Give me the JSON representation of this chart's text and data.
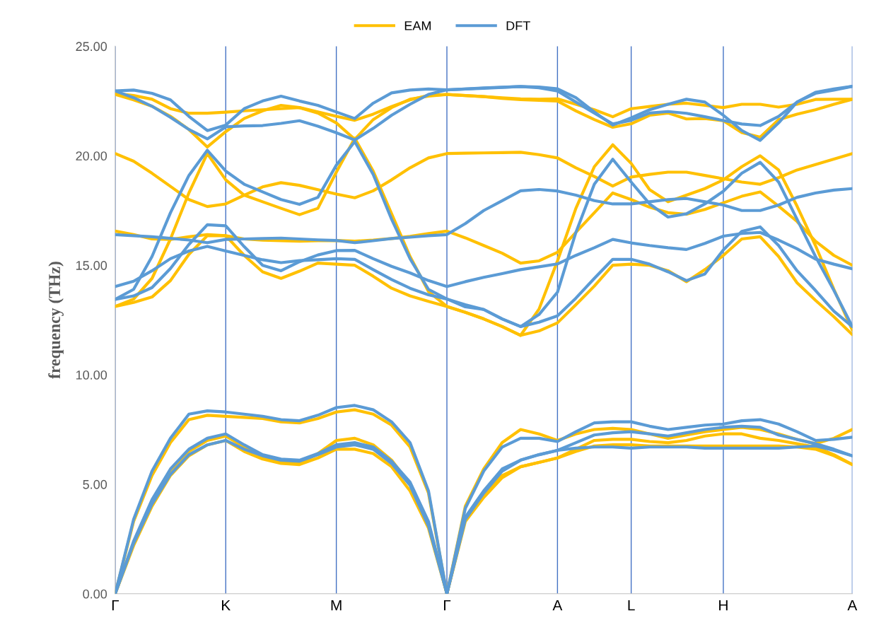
{
  "chart_data": {
    "type": "line",
    "ylabel": "frequency (THz)",
    "legend": "top",
    "marker": "none",
    "line_style": "solid",
    "grid": "x",
    "categories": [
      "Γ",
      null,
      null,
      null,
      null,
      null,
      "K",
      null,
      null,
      null,
      null,
      null,
      "M",
      null,
      null,
      null,
      null,
      null,
      "Γ",
      null,
      null,
      null,
      null,
      null,
      "A",
      null,
      null,
      null,
      "L",
      null,
      null,
      null,
      null,
      "H",
      null,
      null,
      null,
      null,
      null,
      null,
      "A"
    ],
    "ylim": [
      0,
      25
    ],
    "yticks": [
      {
        "value": 0,
        "label": "0.00"
      },
      {
        "value": 5,
        "label": "5.00"
      },
      {
        "value": 10,
        "label": "10.00"
      },
      {
        "value": 15,
        "label": "15.00"
      },
      {
        "value": 20,
        "label": "20.00"
      },
      {
        "value": 25,
        "label": "25.00"
      }
    ],
    "series": [
      {
        "name": "EAM",
        "color": "#ffc000",
        "values": [
          0,
          3.3,
          5.4,
          6.9,
          7.95,
          8.15,
          8.1,
          8.05,
          8.0,
          7.85,
          7.8,
          8.0,
          8.3,
          8.4,
          8.2,
          7.7,
          6.7,
          4.6,
          0,
          4.0,
          5.7,
          6.9,
          7.5,
          7.3,
          7.0,
          7.3,
          7.5,
          7.55,
          7.5,
          7.3,
          7.1,
          7.25,
          7.4,
          7.5,
          7.6,
          7.5,
          7.3,
          7.05,
          6.85,
          7.1,
          7.5
        ]
      },
      {
        "color": "#ffc000",
        "values": [
          0,
          2.3,
          4.2,
          5.6,
          6.5,
          7.0,
          7.2,
          6.7,
          6.25,
          6.0,
          5.95,
          6.4,
          7.0,
          7.1,
          6.8,
          6.1,
          5.0,
          3.2,
          0,
          3.4,
          4.5,
          5.4,
          5.8,
          6.0,
          6.2,
          6.6,
          7.0,
          7.05,
          7.05,
          6.95,
          6.9,
          7.0,
          7.2,
          7.3,
          7.3,
          7.1,
          7.0,
          6.85,
          6.7,
          6.35,
          5.9
        ]
      },
      {
        "color": "#ffc000",
        "values": [
          0,
          2.2,
          4.0,
          5.4,
          6.3,
          6.8,
          7.0,
          6.5,
          6.15,
          5.95,
          5.9,
          6.2,
          6.6,
          6.6,
          6.4,
          5.8,
          4.7,
          3.0,
          0,
          3.3,
          4.4,
          5.3,
          5.8,
          6.0,
          6.2,
          6.5,
          6.75,
          6.8,
          6.8,
          6.75,
          6.75,
          6.75,
          6.75,
          6.75,
          6.75,
          6.75,
          6.75,
          6.7,
          6.6,
          6.3,
          5.9
        ]
      },
      {
        "color": "#ffc000",
        "values": [
          22.85,
          22.75,
          22.58,
          22.15,
          21.94,
          21.94,
          21.99,
          22.05,
          22.1,
          22.15,
          22.2,
          22.0,
          21.8,
          21.62,
          21.9,
          22.25,
          22.55,
          22.76,
          22.8,
          22.75,
          22.7,
          22.65,
          22.6,
          22.58,
          22.6,
          22.35,
          22.1,
          21.78,
          22.15,
          22.25,
          22.35,
          22.4,
          22.3,
          22.2,
          22.35,
          22.35,
          22.22,
          22.35,
          22.57,
          22.58,
          22.58
        ]
      },
      {
        "color": "#ffc000",
        "values": [
          22.8,
          22.55,
          22.26,
          21.8,
          21.2,
          20.4,
          21.1,
          21.7,
          22.05,
          22.3,
          22.2,
          21.95,
          21.5,
          20.75,
          21.65,
          22.2,
          22.58,
          22.72,
          22.8,
          22.75,
          22.7,
          22.62,
          22.56,
          22.53,
          22.5,
          22.05,
          21.65,
          21.3,
          21.46,
          21.85,
          21.95,
          21.68,
          21.7,
          21.6,
          21.06,
          20.85,
          21.65,
          21.9,
          22.1,
          22.35,
          22.58
        ]
      },
      {
        "color": "#ffc000",
        "values": [
          20.1,
          19.75,
          19.2,
          18.6,
          18.0,
          17.68,
          17.8,
          18.2,
          18.58,
          18.77,
          18.65,
          18.45,
          18.25,
          18.08,
          18.4,
          18.9,
          19.45,
          19.9,
          20.1,
          20.12,
          20.13,
          20.14,
          20.16,
          20.05,
          19.9,
          19.45,
          19.05,
          18.62,
          19.03,
          19.15,
          19.25,
          19.25,
          19.1,
          18.95,
          18.8,
          18.7,
          19.0,
          19.35,
          19.6,
          19.85,
          20.1
        ]
      },
      {
        "color": "#ffc000",
        "values": [
          13.12,
          13.45,
          14.4,
          16.2,
          18.3,
          20.1,
          18.9,
          18.2,
          17.9,
          17.6,
          17.31,
          17.6,
          19.25,
          20.8,
          19.3,
          17.35,
          15.4,
          13.8,
          13.12,
          12.85,
          12.55,
          12.2,
          11.8,
          13.0,
          15.2,
          17.6,
          19.5,
          20.5,
          19.65,
          18.45,
          17.9,
          18.2,
          18.5,
          18.9,
          19.5,
          20.0,
          19.35,
          17.7,
          15.9,
          13.9,
          12.04
        ]
      },
      {
        "color": "#ffc000",
        "values": [
          13.12,
          13.3,
          13.55,
          14.3,
          15.5,
          16.35,
          16.35,
          15.45,
          14.7,
          14.4,
          14.73,
          15.1,
          15.05,
          15.0,
          14.5,
          13.95,
          13.6,
          13.35,
          13.12,
          12.85,
          12.55,
          12.2,
          11.8,
          12.0,
          12.37,
          13.2,
          14.05,
          15.0,
          15.05,
          15.0,
          14.75,
          14.25,
          14.8,
          15.45,
          16.2,
          16.3,
          15.4,
          14.2,
          13.4,
          12.65,
          11.83
        ]
      },
      {
        "color": "#ffc000",
        "values": [
          16.56,
          16.4,
          16.2,
          16.18,
          16.3,
          16.4,
          16.35,
          16.2,
          16.15,
          16.12,
          16.1,
          16.12,
          16.13,
          16.1,
          16.15,
          16.22,
          16.32,
          16.45,
          16.56,
          16.25,
          15.9,
          15.55,
          15.1,
          15.2,
          15.59,
          16.5,
          17.4,
          18.3,
          18.0,
          17.65,
          17.4,
          17.33,
          17.55,
          17.85,
          18.15,
          18.35,
          17.7,
          17.0,
          16.1,
          15.45,
          15.0
        ]
      },
      {
        "name": "DFT",
        "color": "#5b9bd5",
        "values": [
          0,
          3.4,
          5.6,
          7.1,
          8.2,
          8.35,
          8.3,
          8.2,
          8.1,
          7.95,
          7.9,
          8.15,
          8.5,
          8.6,
          8.4,
          7.85,
          6.9,
          4.7,
          0,
          3.9,
          5.6,
          6.7,
          7.1,
          7.1,
          6.95,
          7.4,
          7.8,
          7.85,
          7.85,
          7.65,
          7.5,
          7.6,
          7.7,
          7.75,
          7.9,
          7.95,
          7.75,
          7.4,
          7.0,
          7.05,
          7.15
        ]
      },
      {
        "color": "#5b9bd5",
        "values": [
          0,
          2.4,
          4.3,
          5.7,
          6.6,
          7.1,
          7.3,
          6.8,
          6.35,
          6.15,
          6.1,
          6.4,
          6.8,
          6.9,
          6.7,
          6.05,
          5.1,
          3.3,
          0,
          3.5,
          4.7,
          5.7,
          6.1,
          6.35,
          6.55,
          6.9,
          7.25,
          7.35,
          7.4,
          7.3,
          7.2,
          7.35,
          7.5,
          7.6,
          7.65,
          7.6,
          7.25,
          7.05,
          6.85,
          6.6,
          6.3
        ]
      },
      {
        "color": "#5b9bd5",
        "values": [
          0,
          2.3,
          4.1,
          5.45,
          6.35,
          6.8,
          7.0,
          6.6,
          6.3,
          6.1,
          6.05,
          6.35,
          6.7,
          6.8,
          6.6,
          5.95,
          4.95,
          3.1,
          0,
          3.4,
          4.6,
          5.6,
          6.1,
          6.35,
          6.55,
          6.65,
          6.7,
          6.7,
          6.65,
          6.7,
          6.7,
          6.7,
          6.65,
          6.65,
          6.65,
          6.65,
          6.65,
          6.7,
          6.75,
          6.55,
          6.3
        ]
      },
      {
        "color": "#5b9bd5",
        "values": [
          22.96,
          23.0,
          22.85,
          22.55,
          21.8,
          21.15,
          21.4,
          22.15,
          22.5,
          22.72,
          22.5,
          22.3,
          22.0,
          21.7,
          22.4,
          22.87,
          23.0,
          23.05,
          23.01,
          23.05,
          23.1,
          23.13,
          23.16,
          23.14,
          23.06,
          22.65,
          22.0,
          21.4,
          21.73,
          22.1,
          22.35,
          22.58,
          22.45,
          21.85,
          21.15,
          20.7,
          21.5,
          22.45,
          22.9,
          23.05,
          23.17
        ]
      },
      {
        "color": "#5b9bd5",
        "values": [
          22.96,
          22.65,
          22.26,
          21.75,
          21.2,
          20.77,
          21.32,
          21.36,
          21.38,
          21.48,
          21.6,
          21.35,
          21.05,
          20.72,
          21.25,
          21.85,
          22.35,
          22.8,
          23.01,
          23.05,
          23.08,
          23.12,
          23.16,
          23.1,
          22.96,
          22.45,
          21.95,
          21.45,
          21.62,
          21.95,
          22.02,
          21.94,
          21.78,
          21.61,
          21.45,
          21.38,
          21.8,
          22.45,
          22.85,
          23.0,
          23.17
        ]
      },
      {
        "color": "#5b9bd5",
        "values": [
          13.44,
          13.9,
          15.4,
          17.4,
          19.1,
          20.25,
          19.3,
          18.7,
          18.35,
          18.0,
          17.78,
          18.1,
          19.57,
          20.65,
          19.15,
          17.1,
          15.3,
          13.9,
          13.46,
          13.2,
          12.98,
          12.55,
          12.2,
          12.75,
          13.77,
          16.5,
          18.7,
          19.84,
          18.8,
          17.8,
          17.2,
          17.35,
          17.8,
          18.38,
          19.2,
          19.7,
          18.8,
          17.1,
          15.4,
          13.85,
          12.2
        ]
      },
      {
        "color": "#5b9bd5",
        "values": [
          13.44,
          13.6,
          13.98,
          14.85,
          15.95,
          16.85,
          16.8,
          15.85,
          15.0,
          14.75,
          15.16,
          15.47,
          15.67,
          15.68,
          15.3,
          14.95,
          14.65,
          14.3,
          14.03,
          14.25,
          14.45,
          14.62,
          14.8,
          14.93,
          15.06,
          15.45,
          15.8,
          16.18,
          16.02,
          15.9,
          15.8,
          15.72,
          16.0,
          16.33,
          16.45,
          16.5,
          16.15,
          15.75,
          15.28,
          15.05,
          14.84
        ]
      },
      {
        "color": "#5b9bd5",
        "values": [
          14.03,
          14.27,
          14.75,
          15.3,
          15.65,
          15.86,
          15.65,
          15.45,
          15.25,
          15.12,
          15.21,
          15.25,
          15.3,
          15.27,
          14.8,
          14.35,
          13.95,
          13.65,
          13.46,
          13.1,
          12.98,
          12.55,
          12.2,
          12.4,
          12.69,
          13.5,
          14.4,
          15.27,
          15.27,
          15.05,
          14.7,
          14.3,
          14.6,
          15.7,
          16.55,
          16.75,
          15.9,
          14.75,
          13.85,
          12.9,
          12.2
        ]
      },
      {
        "color": "#5b9bd5",
        "values": [
          16.4,
          16.35,
          16.3,
          16.23,
          16.15,
          16.03,
          16.18,
          16.2,
          16.22,
          16.24,
          16.2,
          16.16,
          16.13,
          16.03,
          16.12,
          16.22,
          16.28,
          16.35,
          16.4,
          16.9,
          17.5,
          17.95,
          18.4,
          18.46,
          18.39,
          18.2,
          17.95,
          17.8,
          17.8,
          17.9,
          18.0,
          18.05,
          17.9,
          17.75,
          17.5,
          17.5,
          17.75,
          18.1,
          18.3,
          18.43,
          18.5
        ]
      }
    ]
  }
}
